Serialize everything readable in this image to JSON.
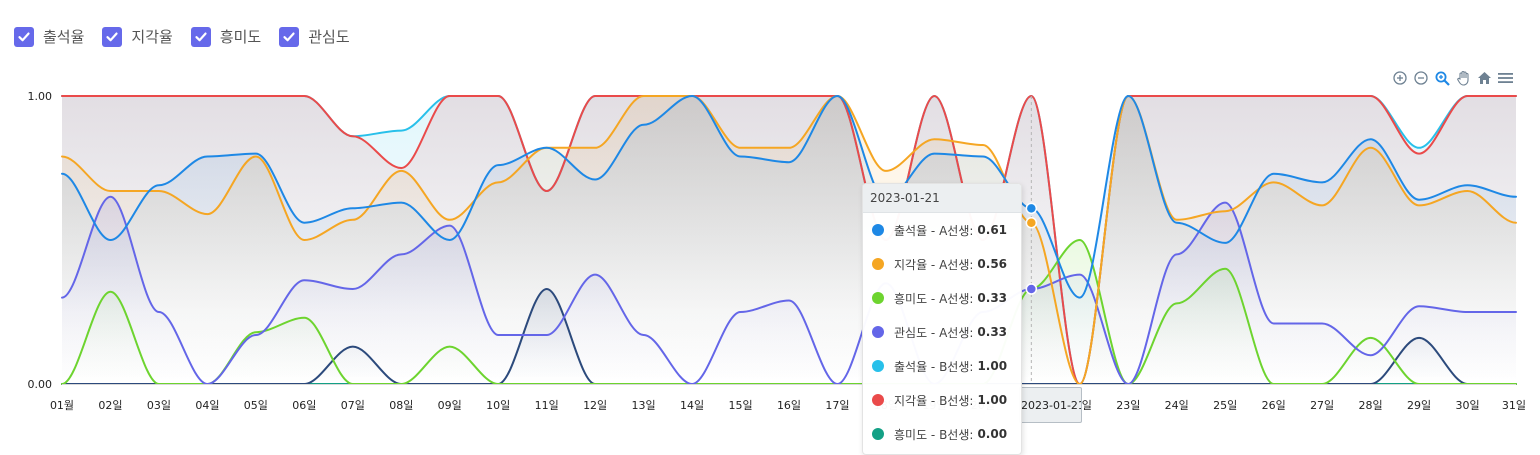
{
  "legend": {
    "items": [
      {
        "label": "출석율",
        "checked": true
      },
      {
        "label": "지각율",
        "checked": true
      },
      {
        "label": "흥미도",
        "checked": true
      },
      {
        "label": "관심도",
        "checked": true
      }
    ],
    "checkbox_color": "#6669ea"
  },
  "toolbar": {
    "icons": [
      "zoom-in-icon",
      "zoom-out-icon",
      "selection-zoom-icon",
      "pan-hand-icon",
      "home-reset-icon",
      "menu-icon"
    ]
  },
  "tooltip": {
    "title": "2023-01-21",
    "rows": [
      {
        "label": "출석율 - A선생:",
        "value": "0.61",
        "color": "#1e88e5"
      },
      {
        "label": "지각율 - A선생:",
        "value": "0.56",
        "color": "#f5a623"
      },
      {
        "label": "흥미도 - A선생:",
        "value": "0.33",
        "color": "#6dd42f"
      },
      {
        "label": "관심도 - A선생:",
        "value": "0.33",
        "color": "#6466e8"
      },
      {
        "label": "출석율 - B선생:",
        "value": "1.00",
        "color": "#28c0ea"
      },
      {
        "label": "지각율 - B선생:",
        "value": "1.00",
        "color": "#ea4a4a"
      },
      {
        "label": "흥미도 - B선생:",
        "value": "0.00",
        "color": "#13a085"
      }
    ]
  },
  "xaxis_tooltip": {
    "text": "2023-01-21"
  },
  "chart_data": {
    "type": "area",
    "x": [
      "01월",
      "02일",
      "03일",
      "04일",
      "05일",
      "06일",
      "07일",
      "08일",
      "09일",
      "10일",
      "11일",
      "12일",
      "13일",
      "14일",
      "15일",
      "16일",
      "17일",
      "18일",
      "19일",
      "20일",
      "21일",
      "22일",
      "23일",
      "24일",
      "25일",
      "26일",
      "27일",
      "28일",
      "29일",
      "30일",
      "31일"
    ],
    "ylim": [
      0,
      1
    ],
    "ytick_labels": [
      "0.00",
      "1.00"
    ],
    "grid": false,
    "legend_position": "top-left",
    "series": [
      {
        "name": "출석율 - A선생",
        "color": "#1e88e5",
        "values": [
          0.73,
          0.5,
          0.69,
          0.79,
          0.8,
          0.56,
          0.61,
          0.63,
          0.5,
          0.76,
          0.82,
          0.71,
          0.9,
          1.0,
          0.79,
          0.77,
          1.0,
          0.64,
          0.8,
          0.79,
          0.61,
          0.3,
          1.0,
          0.56,
          0.49,
          0.73,
          0.7,
          0.85,
          0.64,
          0.69,
          0.65
        ]
      },
      {
        "name": "지각율 - A선생",
        "color": "#f5a623",
        "values": [
          0.79,
          0.67,
          0.67,
          0.59,
          0.79,
          0.5,
          0.57,
          0.74,
          0.57,
          0.7,
          0.82,
          0.82,
          1.0,
          1.0,
          0.82,
          0.82,
          1.0,
          0.74,
          0.85,
          0.83,
          0.56,
          0.0,
          1.0,
          0.57,
          0.6,
          0.7,
          0.62,
          0.82,
          0.62,
          0.67,
          0.56
        ]
      },
      {
        "name": "흥미도 - A선생",
        "color": "#6dd42f",
        "values": [
          0.0,
          0.32,
          0.0,
          0.0,
          0.18,
          0.23,
          0.0,
          0.0,
          0.13,
          0.0,
          0.0,
          0.0,
          0.0,
          0.0,
          0.0,
          0.0,
          0.0,
          0.0,
          0.0,
          0.0,
          0.33,
          0.5,
          0.0,
          0.28,
          0.4,
          0.0,
          0.0,
          0.16,
          0.0,
          0.0,
          0.0
        ]
      },
      {
        "name": "관심도 - A선생",
        "color": "#6466e8",
        "values": [
          0.3,
          0.65,
          0.25,
          0.0,
          0.17,
          0.36,
          0.33,
          0.45,
          0.55,
          0.17,
          0.17,
          0.38,
          0.17,
          0.0,
          0.25,
          0.29,
          0.0,
          0.35,
          0.0,
          0.25,
          0.33,
          0.38,
          0.0,
          0.45,
          0.63,
          0.21,
          0.21,
          0.1,
          0.27,
          0.25,
          0.25
        ]
      },
      {
        "name": "출석율 - B선생",
        "color": "#28c0ea",
        "values": [
          1.0,
          1.0,
          1.0,
          1.0,
          1.0,
          1.0,
          0.86,
          0.88,
          1.0,
          1.0,
          0.67,
          1.0,
          1.0,
          1.0,
          1.0,
          1.0,
          1.0,
          0.5,
          1.0,
          0.5,
          1.0,
          0.0,
          1.0,
          1.0,
          1.0,
          1.0,
          1.0,
          1.0,
          0.82,
          1.0,
          1.0
        ]
      },
      {
        "name": "지각율 - B선생",
        "color": "#ea4a4a",
        "values": [
          1.0,
          1.0,
          1.0,
          1.0,
          1.0,
          1.0,
          0.86,
          0.75,
          1.0,
          1.0,
          0.67,
          1.0,
          1.0,
          1.0,
          1.0,
          1.0,
          1.0,
          0.5,
          1.0,
          0.5,
          1.0,
          0.0,
          1.0,
          1.0,
          1.0,
          1.0,
          1.0,
          1.0,
          0.8,
          1.0,
          1.0
        ]
      },
      {
        "name": "흥미도 - B선생",
        "color": "#13a085",
        "values": [
          0,
          0,
          0,
          0,
          0,
          0,
          0,
          0,
          0,
          0,
          0,
          0,
          0,
          0,
          0,
          0,
          0,
          0,
          0,
          0,
          0,
          0,
          0,
          0,
          0,
          0,
          0,
          0,
          0,
          0,
          0
        ]
      },
      {
        "name": "관심도 - B선생",
        "color": "#2c4a7c",
        "values": [
          0,
          0,
          0,
          0,
          0,
          0,
          0.13,
          0,
          0,
          0,
          0.33,
          0,
          0,
          0,
          0,
          0,
          0,
          0,
          0,
          0,
          0,
          0,
          0,
          0,
          0,
          0,
          0,
          0,
          0.16,
          0,
          0
        ]
      }
    ],
    "highlight_index": 20,
    "highlight_values": [
      0.61,
      0.56,
      0.33,
      0.33
    ]
  }
}
